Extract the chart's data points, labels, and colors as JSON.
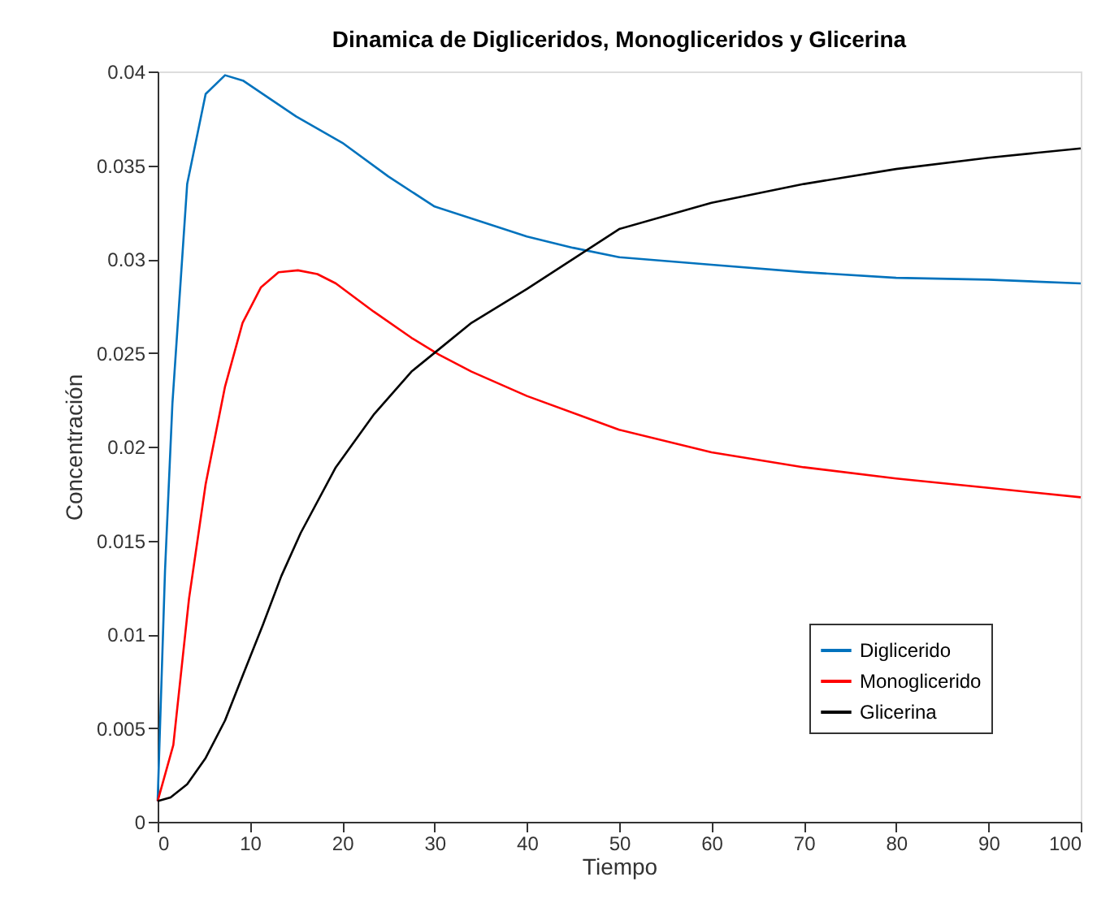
{
  "chart_data": {
    "type": "line",
    "title": "Dinamica de Digliceridos, Monogliceridos y Glicerina",
    "xlabel": "Tiempo",
    "ylabel": "Concentración",
    "xlim": [
      0,
      100
    ],
    "ylim": [
      0,
      0.04
    ],
    "xticks": [
      0,
      10,
      20,
      30,
      40,
      50,
      60,
      70,
      80,
      90,
      100
    ],
    "yticks": [
      0,
      0.005,
      0.01,
      0.015,
      0.02,
      0.025,
      0.03,
      0.035,
      0.04
    ],
    "grid": false,
    "legend": "bottom right",
    "marker": "none",
    "line_style": "solid",
    "series": [
      {
        "name": "Diglicerido",
        "color": "#0072bd",
        "x": [
          0,
          0.8,
          1.6,
          3.2,
          5.2,
          7.3,
          9.3,
          12,
          15,
          20,
          25,
          30,
          35,
          40,
          45,
          50,
          60,
          70,
          80,
          90,
          100
        ],
        "values": [
          0.0011,
          0.0134,
          0.0223,
          0.034,
          0.0388,
          0.0398,
          0.0395,
          0.0386,
          0.0376,
          0.0362,
          0.0344,
          0.0328,
          0.032,
          0.0312,
          0.0306,
          0.0301,
          0.0297,
          0.0293,
          0.029,
          0.0289,
          0.0287
        ]
      },
      {
        "name": "Monoglicerido",
        "color": "#ff0000",
        "x": [
          0,
          1.7,
          3.4,
          5.2,
          7.3,
          9.2,
          11.2,
          13.1,
          15.2,
          17.3,
          19.3,
          23.4,
          27.5,
          30.5,
          34,
          40,
          50,
          60,
          70,
          80,
          90,
          100
        ],
        "values": [
          0.0011,
          0.0041,
          0.0119,
          0.018,
          0.0232,
          0.0266,
          0.0285,
          0.0293,
          0.0294,
          0.0292,
          0.0287,
          0.0272,
          0.0258,
          0.0249,
          0.024,
          0.0227,
          0.0209,
          0.0197,
          0.0189,
          0.0183,
          0.0178,
          0.0173
        ]
      },
      {
        "name": "Glicerina",
        "color": "#000000",
        "x": [
          0,
          1.4,
          3.2,
          5.2,
          7.3,
          9.3,
          11.4,
          13.4,
          15.5,
          19.3,
          23.4,
          27.5,
          30.5,
          34,
          40,
          50,
          60,
          70,
          80,
          90,
          100
        ],
        "values": [
          0.0011,
          0.0013,
          0.002,
          0.0034,
          0.0054,
          0.0079,
          0.0105,
          0.0131,
          0.0154,
          0.0189,
          0.0217,
          0.024,
          0.0252,
          0.0266,
          0.0284,
          0.0316,
          0.033,
          0.034,
          0.0348,
          0.0354,
          0.0359
        ]
      }
    ]
  }
}
